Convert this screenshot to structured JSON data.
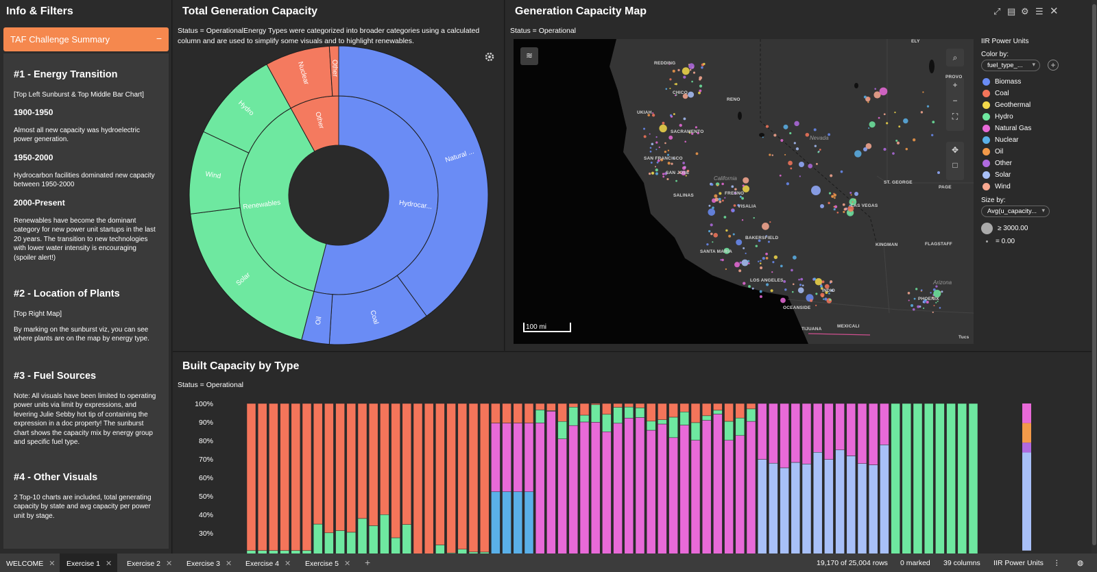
{
  "left": {
    "title": "Info & Filters",
    "summary_header": "TAF Challenge Summary",
    "summary_toggle": "−",
    "sections": [
      {
        "h": "#1 - Energy Transition"
      },
      {
        "p": "[Top Left Sunburst & Top Middle Bar Chart]"
      },
      {
        "sub": "1900-1950"
      },
      {
        "p": "Almost all new capacity was hydroelectric power generation."
      },
      {
        "sub": "1950-2000"
      },
      {
        "p": "Hydrocarbon facilities dominated new capacity between 1950-2000"
      },
      {
        "sub": "2000-Present"
      },
      {
        "p": "Renewables have become the dominant category for new power unit startups in the last 20 years. The transition to new technologies with lower water intensity is encouraging (spoiler alert!)"
      },
      {
        "h": "#2 - Location of Plants"
      },
      {
        "p": "[Top Right Map]"
      },
      {
        "p": "By marking on the sunburst viz, you can see where plants are on the map by energy type."
      },
      {
        "h": "#3 - Fuel Sources"
      },
      {
        "p": "Note: All visuals have been limited to operating power units via limit by expressions, and levering Julie Sebby hot tip of containing the expression in a doc property! The sunburst chart shows the capacity mix by energy group and specific fuel type."
      },
      {
        "h": "#4 - Other Visuals"
      },
      {
        "p": "2 Top-10 charts are included, total generating capacity by state and avg capacity per power unit by stage."
      }
    ]
  },
  "sunburst": {
    "title": "Total Generation Capacity",
    "subtitle_line1": "Status = OperationalEnergy Types were categorized into broader categories using a calculated",
    "subtitle_line2": "column and are used to simplify some visuals and to highlight renewables.",
    "colors": {
      "hydrocarbon": "#6a8cf5",
      "renewables": "#6ee8a0",
      "other": "#f47a5f"
    },
    "inner_labels": {
      "hydrocarbon": "Hydrocar...",
      "renewables": "Renewables",
      "other": "Other"
    },
    "outer_labels": {
      "natural_gas": "Natural ...",
      "coal": "Coal",
      "oil": "Oil",
      "solar": "Solar",
      "wind": "Wind",
      "hydro": "Hydro",
      "nuclear": "Nuclear"
    },
    "chart_data": {
      "type": "sunburst",
      "inner": [
        {
          "name": "Hydrocar...",
          "value": 54
        },
        {
          "name": "Renewables",
          "value": 38
        },
        {
          "name": "Other",
          "value": 8
        }
      ],
      "outer": [
        {
          "name": "Natural ...",
          "parent": "Hydrocar...",
          "value": 40
        },
        {
          "name": "Coal",
          "parent": "Hydrocar...",
          "value": 11
        },
        {
          "name": "Oil",
          "parent": "Hydrocar...",
          "value": 3
        },
        {
          "name": "Solar",
          "parent": "Renewables",
          "value": 19
        },
        {
          "name": "Wind",
          "parent": "Renewables",
          "value": 9
        },
        {
          "name": "Hydro",
          "parent": "Renewables",
          "value": 10
        },
        {
          "name": "Nuclear",
          "parent": "Other",
          "value": 7
        },
        {
          "name": "Other",
          "parent": "Other",
          "value": 1
        }
      ]
    }
  },
  "map": {
    "title": "Generation Capacity Map",
    "subtitle": "Status = Operational",
    "scale_label": "100 mi",
    "legend_title": "IIR Power Units",
    "color_by_label": "Color by:",
    "color_by_value": "fuel_type_...",
    "size_by_label": "Size by:",
    "size_by_value": "Avg(u_capacity...",
    "size_max": "≥ 3000.00",
    "size_min": "= 0.00",
    "fuel_types": [
      {
        "name": "Biomass",
        "color": "#6a8cf5"
      },
      {
        "name": "Coal",
        "color": "#f4755a"
      },
      {
        "name": "Geothermal",
        "color": "#f2d84a"
      },
      {
        "name": "Hydro",
        "color": "#6ee8a0"
      },
      {
        "name": "Natural Gas",
        "color": "#e86ad8"
      },
      {
        "name": "Nuclear",
        "color": "#5ab0e8"
      },
      {
        "name": "Oil",
        "color": "#f39a4a"
      },
      {
        "name": "Other",
        "color": "#b06ae0"
      },
      {
        "name": "Solar",
        "color": "#a8c0f8"
      },
      {
        "name": "Wind",
        "color": "#f8a890"
      }
    ],
    "cities": [
      "REDDING",
      "CHICO",
      "RENO",
      "UKIAH",
      "SACRAMENTO",
      "SAN FRANCISCO",
      "SAN JOSE",
      "FRESNO",
      "VISALIA",
      "SALINAS",
      "BAKERSFIELD",
      "SANTA MARIA",
      "LOS ANGELES",
      "INDIO",
      "OCEANSIDE",
      "TIJUANA",
      "MEXICALI",
      "LAS VEGAS",
      "ST. GEORGE",
      "PAGE",
      "KINGMAN",
      "FLAGSTAFF",
      "PHOENIX",
      "PROVO",
      "ELY"
    ],
    "states": [
      "Nevada",
      "California",
      "Arizona"
    ],
    "partial_labels": [
      "Tucs"
    ]
  },
  "bars": {
    "title": "Built Capacity by Type",
    "subtitle": "Status = Operational",
    "chart_data": {
      "type": "bar",
      "stacked": "100%",
      "ylim": [
        0.25,
        1.0
      ],
      "yticks": [
        "100%",
        "90%",
        "80%",
        "70%",
        "60%",
        "50%",
        "40%",
        "30%"
      ],
      "bar_count": 66,
      "note": "each bar = share of capacity by fuel type for one start year; dominant type: first ~25 coal/hydro, middle natural gas, later solar then wind"
    }
  },
  "tabs": [
    "WELCOME",
    "Exercise 1",
    "Exercise 2",
    "Exercise 3",
    "Exercise 4",
    "Exercise 5"
  ],
  "tab_add": "+",
  "status": {
    "rows": "19,170 of 25,004 rows",
    "marked": "0 marked",
    "columns": "39 columns",
    "table": "IIR Power Units"
  }
}
